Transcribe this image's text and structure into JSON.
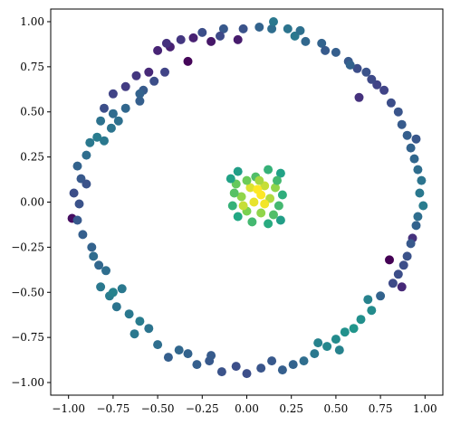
{
  "chart_data": {
    "type": "scatter",
    "title": "",
    "xlabel": "",
    "ylabel": "",
    "xlim": [
      -1.1,
      1.1
    ],
    "ylim": [
      -1.07,
      1.07
    ],
    "grid": false,
    "legend": "none",
    "colormap": "viridis",
    "x_ticks": [
      -1.0,
      -0.75,
      -0.5,
      -0.25,
      0.0,
      0.25,
      0.5,
      0.75,
      1.0
    ],
    "x_tick_labels": [
      "−1.00",
      "−0.75",
      "−0.50",
      "−0.25",
      "0.00",
      "0.25",
      "0.50",
      "0.75",
      "1.00"
    ],
    "y_ticks": [
      1.0,
      0.75,
      0.5,
      0.25,
      0.0,
      -0.25,
      -0.5,
      -0.75,
      -1.0
    ],
    "y_tick_labels": [
      "1.00",
      "0.75",
      "0.50",
      "0.25",
      "0.00",
      "−0.25",
      "−0.50",
      "−0.75",
      "−1.00"
    ],
    "series": [
      {
        "points": [
          {
            "x": 0.05,
            "y": 0.14,
            "v": 0.82
          },
          {
            "x": 0.12,
            "y": 0.18,
            "v": 0.78
          },
          {
            "x": -0.05,
            "y": 0.17,
            "v": 0.7
          },
          {
            "x": 0.19,
            "y": 0.16,
            "v": 0.72
          },
          {
            "x": 0.1,
            "y": 0.09,
            "v": 0.95
          },
          {
            "x": 0.02,
            "y": 0.08,
            "v": 0.97
          },
          {
            "x": -0.06,
            "y": 0.1,
            "v": 0.85
          },
          {
            "x": 0.16,
            "y": 0.08,
            "v": 0.9
          },
          {
            "x": 0.08,
            "y": 0.04,
            "v": 1.0
          },
          {
            "x": 0.04,
            "y": 0.0,
            "v": 0.98
          },
          {
            "x": -0.03,
            "y": 0.03,
            "v": 0.9
          },
          {
            "x": 0.13,
            "y": 0.02,
            "v": 0.93
          },
          {
            "x": 0.18,
            "y": -0.02,
            "v": 0.8
          },
          {
            "x": -0.08,
            "y": -0.02,
            "v": 0.78
          },
          {
            "x": 0.0,
            "y": -0.05,
            "v": 0.88
          },
          {
            "x": 0.08,
            "y": -0.06,
            "v": 0.9
          },
          {
            "x": 0.15,
            "y": -0.07,
            "v": 0.82
          },
          {
            "x": -0.05,
            "y": -0.08,
            "v": 0.75
          },
          {
            "x": 0.03,
            "y": -0.11,
            "v": 0.8
          },
          {
            "x": 0.12,
            "y": -0.12,
            "v": 0.76
          },
          {
            "x": 0.19,
            "y": -0.1,
            "v": 0.7
          },
          {
            "x": -0.07,
            "y": 0.05,
            "v": 0.83
          },
          {
            "x": 0.07,
            "y": 0.12,
            "v": 0.92
          },
          {
            "x": 0.0,
            "y": 0.12,
            "v": 0.86
          },
          {
            "x": 0.17,
            "y": 0.12,
            "v": 0.8
          },
          {
            "x": -0.02,
            "y": -0.02,
            "v": 0.95
          },
          {
            "x": 0.1,
            "y": -0.01,
            "v": 0.99
          },
          {
            "x": 0.06,
            "y": 0.07,
            "v": 1.0
          },
          {
            "x": -0.09,
            "y": 0.13,
            "v": 0.72
          },
          {
            "x": 0.2,
            "y": 0.04,
            "v": 0.77
          },
          {
            "x": 0.8,
            "y": -0.32,
            "v": 0.0
          },
          {
            "x": -0.33,
            "y": 0.78,
            "v": 0.02
          },
          {
            "x": -0.98,
            "y": -0.09,
            "v": 0.05
          },
          {
            "x": -0.2,
            "y": 0.89,
            "v": 0.08
          },
          {
            "x": -0.05,
            "y": 0.9,
            "v": 0.1
          },
          {
            "x": -0.43,
            "y": 0.86,
            "v": 0.12
          },
          {
            "x": -0.55,
            "y": 0.72,
            "v": 0.15
          },
          {
            "x": -0.75,
            "y": 0.6,
            "v": 0.25
          },
          {
            "x": 0.93,
            "y": -0.2,
            "v": 0.18
          },
          {
            "x": 0.87,
            "y": -0.47,
            "v": 0.15
          },
          {
            "x": 0.63,
            "y": 0.58,
            "v": 0.18
          },
          {
            "x": 0.73,
            "y": 0.65,
            "v": 0.25
          },
          {
            "x": -0.3,
            "y": 0.91,
            "v": 0.12
          },
          {
            "x": -0.5,
            "y": 0.84,
            "v": 0.13
          },
          {
            "x": -0.62,
            "y": 0.7,
            "v": 0.2
          },
          {
            "x": -0.68,
            "y": 0.64,
            "v": 0.22
          },
          {
            "x": -0.8,
            "y": 0.52,
            "v": 0.3
          },
          {
            "x": -0.45,
            "y": 0.88,
            "v": 0.18
          },
          {
            "x": -0.37,
            "y": 0.9,
            "v": 0.2
          },
          {
            "x": -0.25,
            "y": 0.94,
            "v": 0.3
          },
          {
            "x": -0.13,
            "y": 0.96,
            "v": 0.35
          },
          {
            "x": -0.02,
            "y": 0.96,
            "v": 0.32
          },
          {
            "x": 0.07,
            "y": 0.97,
            "v": 0.4
          },
          {
            "x": 0.14,
            "y": 0.96,
            "v": 0.45
          },
          {
            "x": 0.23,
            "y": 0.96,
            "v": 0.48
          },
          {
            "x": 0.15,
            "y": 1.0,
            "v": 0.5
          },
          {
            "x": 0.27,
            "y": 0.92,
            "v": 0.5
          },
          {
            "x": 0.33,
            "y": 0.89,
            "v": 0.42
          },
          {
            "x": 0.42,
            "y": 0.88,
            "v": 0.4
          },
          {
            "x": 0.5,
            "y": 0.83,
            "v": 0.38
          },
          {
            "x": 0.57,
            "y": 0.78,
            "v": 0.35
          },
          {
            "x": 0.62,
            "y": 0.74,
            "v": 0.3
          },
          {
            "x": 0.67,
            "y": 0.72,
            "v": 0.32
          },
          {
            "x": 0.7,
            "y": 0.68,
            "v": 0.28
          },
          {
            "x": 0.77,
            "y": 0.62,
            "v": 0.25
          },
          {
            "x": 0.81,
            "y": 0.55,
            "v": 0.3
          },
          {
            "x": 0.85,
            "y": 0.5,
            "v": 0.33
          },
          {
            "x": 0.87,
            "y": 0.43,
            "v": 0.36
          },
          {
            "x": 0.9,
            "y": 0.37,
            "v": 0.38
          },
          {
            "x": 0.92,
            "y": 0.3,
            "v": 0.4
          },
          {
            "x": 0.94,
            "y": 0.24,
            "v": 0.42
          },
          {
            "x": 0.96,
            "y": 0.18,
            "v": 0.45
          },
          {
            "x": 0.98,
            "y": 0.12,
            "v": 0.48
          },
          {
            "x": 0.97,
            "y": 0.05,
            "v": 0.5
          },
          {
            "x": 0.99,
            "y": -0.02,
            "v": 0.52
          },
          {
            "x": 0.96,
            "y": -0.08,
            "v": 0.45
          },
          {
            "x": 0.95,
            "y": -0.13,
            "v": 0.4
          },
          {
            "x": 0.92,
            "y": -0.23,
            "v": 0.35
          },
          {
            "x": 0.9,
            "y": -0.3,
            "v": 0.32
          },
          {
            "x": 0.85,
            "y": -0.4,
            "v": 0.3
          },
          {
            "x": 0.82,
            "y": -0.45,
            "v": 0.28
          },
          {
            "x": 0.75,
            "y": -0.52,
            "v": 0.4
          },
          {
            "x": 0.68,
            "y": -0.54,
            "v": 0.55
          },
          {
            "x": 0.7,
            "y": -0.6,
            "v": 0.6
          },
          {
            "x": 0.64,
            "y": -0.65,
            "v": 0.62
          },
          {
            "x": 0.6,
            "y": -0.7,
            "v": 0.65
          },
          {
            "x": 0.55,
            "y": -0.72,
            "v": 0.63
          },
          {
            "x": 0.5,
            "y": -0.76,
            "v": 0.6
          },
          {
            "x": 0.45,
            "y": -0.8,
            "v": 0.58
          },
          {
            "x": 0.4,
            "y": -0.78,
            "v": 0.55
          },
          {
            "x": 0.38,
            "y": -0.84,
            "v": 0.5
          },
          {
            "x": 0.32,
            "y": -0.88,
            "v": 0.45
          },
          {
            "x": 0.26,
            "y": -0.9,
            "v": 0.4
          },
          {
            "x": 0.2,
            "y": -0.93,
            "v": 0.38
          },
          {
            "x": 0.14,
            "y": -0.88,
            "v": 0.35
          },
          {
            "x": 0.08,
            "y": -0.92,
            "v": 0.33
          },
          {
            "x": 0.0,
            "y": -0.95,
            "v": 0.3
          },
          {
            "x": -0.06,
            "y": -0.91,
            "v": 0.3
          },
          {
            "x": -0.14,
            "y": -0.94,
            "v": 0.32
          },
          {
            "x": -0.21,
            "y": -0.88,
            "v": 0.35
          },
          {
            "x": -0.28,
            "y": -0.9,
            "v": 0.38
          },
          {
            "x": -0.33,
            "y": -0.84,
            "v": 0.4
          },
          {
            "x": -0.38,
            "y": -0.82,
            "v": 0.42
          },
          {
            "x": -0.44,
            "y": -0.86,
            "v": 0.38
          },
          {
            "x": -0.5,
            "y": -0.79,
            "v": 0.45
          },
          {
            "x": -0.55,
            "y": -0.7,
            "v": 0.48
          },
          {
            "x": -0.6,
            "y": -0.66,
            "v": 0.52
          },
          {
            "x": -0.66,
            "y": -0.62,
            "v": 0.5
          },
          {
            "x": -0.73,
            "y": -0.58,
            "v": 0.48
          },
          {
            "x": -0.77,
            "y": -0.52,
            "v": 0.52
          },
          {
            "x": -0.82,
            "y": -0.47,
            "v": 0.5
          },
          {
            "x": -0.75,
            "y": -0.5,
            "v": 0.55
          },
          {
            "x": -0.7,
            "y": -0.48,
            "v": 0.5
          },
          {
            "x": -0.79,
            "y": -0.38,
            "v": 0.45
          },
          {
            "x": -0.83,
            "y": -0.35,
            "v": 0.42
          },
          {
            "x": -0.87,
            "y": -0.25,
            "v": 0.4
          },
          {
            "x": -0.92,
            "y": -0.18,
            "v": 0.38
          },
          {
            "x": -0.95,
            "y": -0.1,
            "v": 0.35
          },
          {
            "x": -0.94,
            "y": -0.01,
            "v": 0.32
          },
          {
            "x": -0.97,
            "y": 0.05,
            "v": 0.3
          },
          {
            "x": -0.93,
            "y": 0.13,
            "v": 0.35
          },
          {
            "x": -0.95,
            "y": 0.2,
            "v": 0.4
          },
          {
            "x": -0.9,
            "y": 0.26,
            "v": 0.45
          },
          {
            "x": -0.88,
            "y": 0.33,
            "v": 0.5
          },
          {
            "x": -0.84,
            "y": 0.36,
            "v": 0.52
          },
          {
            "x": -0.8,
            "y": 0.34,
            "v": 0.5
          },
          {
            "x": -0.76,
            "y": 0.41,
            "v": 0.48
          },
          {
            "x": -0.72,
            "y": 0.45,
            "v": 0.46
          },
          {
            "x": -0.75,
            "y": 0.49,
            "v": 0.44
          },
          {
            "x": -0.68,
            "y": 0.52,
            "v": 0.42
          },
          {
            "x": -0.6,
            "y": 0.56,
            "v": 0.38
          },
          {
            "x": -0.58,
            "y": 0.62,
            "v": 0.36
          },
          {
            "x": -0.52,
            "y": 0.67,
            "v": 0.3
          },
          {
            "x": -0.46,
            "y": 0.72,
            "v": 0.25
          },
          {
            "x": -0.6,
            "y": 0.6,
            "v": 0.4
          },
          {
            "x": 0.58,
            "y": 0.76,
            "v": 0.4
          },
          {
            "x": 0.44,
            "y": 0.84,
            "v": 0.36
          },
          {
            "x": 0.3,
            "y": 0.95,
            "v": 0.46
          },
          {
            "x": -0.15,
            "y": 0.92,
            "v": 0.28
          },
          {
            "x": 0.95,
            "y": 0.35,
            "v": 0.34
          },
          {
            "x": 0.88,
            "y": -0.35,
            "v": 0.3
          },
          {
            "x": 0.52,
            "y": -0.82,
            "v": 0.55
          },
          {
            "x": -0.2,
            "y": -0.85,
            "v": 0.36
          },
          {
            "x": -0.63,
            "y": -0.73,
            "v": 0.5
          },
          {
            "x": -0.86,
            "y": -0.3,
            "v": 0.44
          },
          {
            "x": -0.9,
            "y": 0.1,
            "v": 0.32
          },
          {
            "x": -0.82,
            "y": 0.45,
            "v": 0.47
          }
        ]
      }
    ]
  }
}
